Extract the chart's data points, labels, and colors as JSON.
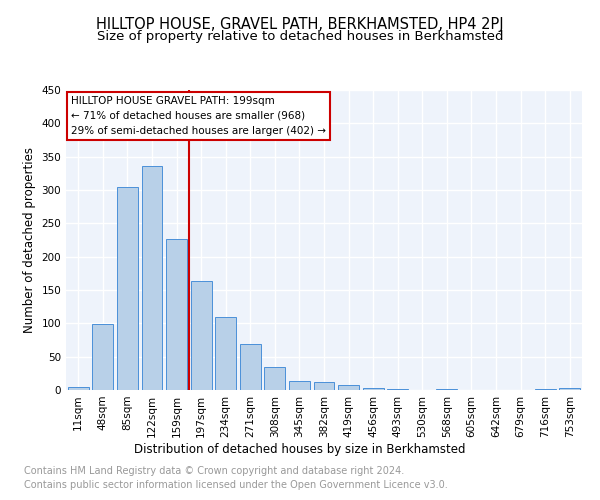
{
  "title": "HILLTOP HOUSE, GRAVEL PATH, BERKHAMSTED, HP4 2PJ",
  "subtitle": "Size of property relative to detached houses in Berkhamsted",
  "xlabel": "Distribution of detached houses by size in Berkhamsted",
  "ylabel": "Number of detached properties",
  "footnote1": "Contains HM Land Registry data © Crown copyright and database right 2024.",
  "footnote2": "Contains public sector information licensed under the Open Government Licence v3.0.",
  "bar_labels": [
    "11sqm",
    "48sqm",
    "85sqm",
    "122sqm",
    "159sqm",
    "197sqm",
    "234sqm",
    "271sqm",
    "308sqm",
    "345sqm",
    "382sqm",
    "419sqm",
    "456sqm",
    "493sqm",
    "530sqm",
    "568sqm",
    "605sqm",
    "642sqm",
    "679sqm",
    "716sqm",
    "753sqm"
  ],
  "bar_values": [
    4,
    99,
    305,
    336,
    226,
    163,
    109,
    69,
    34,
    13,
    12,
    7,
    3,
    1,
    0,
    1,
    0,
    0,
    0,
    1,
    3
  ],
  "bar_color": "#b8d0e8",
  "bar_edge_color": "#4a90d9",
  "vline_color": "#cc0000",
  "annotation_box_text": "HILLTOP HOUSE GRAVEL PATH: 199sqm\n← 71% of detached houses are smaller (968)\n29% of semi-detached houses are larger (402) →",
  "ylim": [
    0,
    450
  ],
  "yticks": [
    0,
    50,
    100,
    150,
    200,
    250,
    300,
    350,
    400,
    450
  ],
  "background_color": "#eef3fb",
  "grid_color": "#ffffff",
  "title_fontsize": 10.5,
  "subtitle_fontsize": 9.5,
  "axis_label_fontsize": 8.5,
  "tick_fontsize": 7.5,
  "footnote_fontsize": 7.0
}
